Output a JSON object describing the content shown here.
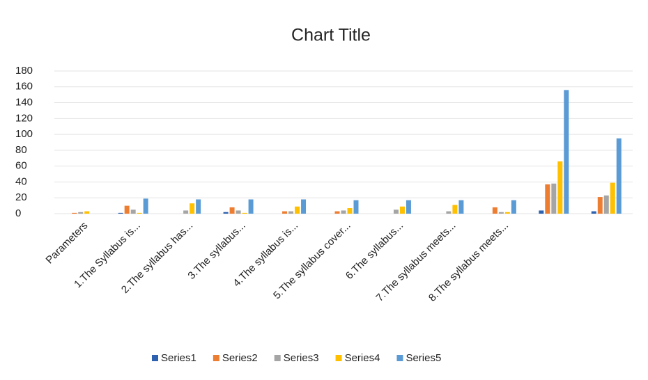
{
  "chart_data": {
    "type": "bar",
    "title": "Chart Title",
    "categories": [
      "Parameters",
      "1.The Syllabus is...",
      "2.The syllabus has...",
      "3.The syllabus...",
      "4.The syllabus is...",
      "5.The syllabus cover...",
      "6.The syllabus...",
      "7.The syllabus meets...",
      "8.The syllabus meets...",
      null,
      null
    ],
    "series": [
      {
        "name": "Series1",
        "color": "#2e62b0",
        "values": [
          0,
          1,
          0,
          2,
          0,
          0,
          0,
          0,
          0,
          4,
          3
        ]
      },
      {
        "name": "Series2",
        "color": "#ed7d31",
        "values": [
          1,
          10,
          0,
          8,
          3,
          3,
          0,
          0,
          8,
          37,
          21
        ]
      },
      {
        "name": "Series3",
        "color": "#a5a5a5",
        "values": [
          2,
          5,
          4,
          4,
          3,
          4,
          5,
          3,
          2,
          38,
          23
        ]
      },
      {
        "name": "Series4",
        "color": "#ffc000",
        "values": [
          3,
          1,
          13,
          1,
          9,
          7,
          9,
          11,
          2,
          66,
          39
        ]
      },
      {
        "name": "Series5",
        "color": "#5b9bd5",
        "values": [
          0,
          19,
          18,
          18,
          18,
          17,
          17,
          17,
          17,
          156,
          95
        ]
      }
    ],
    "ylim": [
      0,
      180
    ],
    "yticks": [
      0,
      20,
      40,
      60,
      80,
      100,
      120,
      140,
      160,
      180
    ],
    "grid": true,
    "legend": "bottom"
  }
}
